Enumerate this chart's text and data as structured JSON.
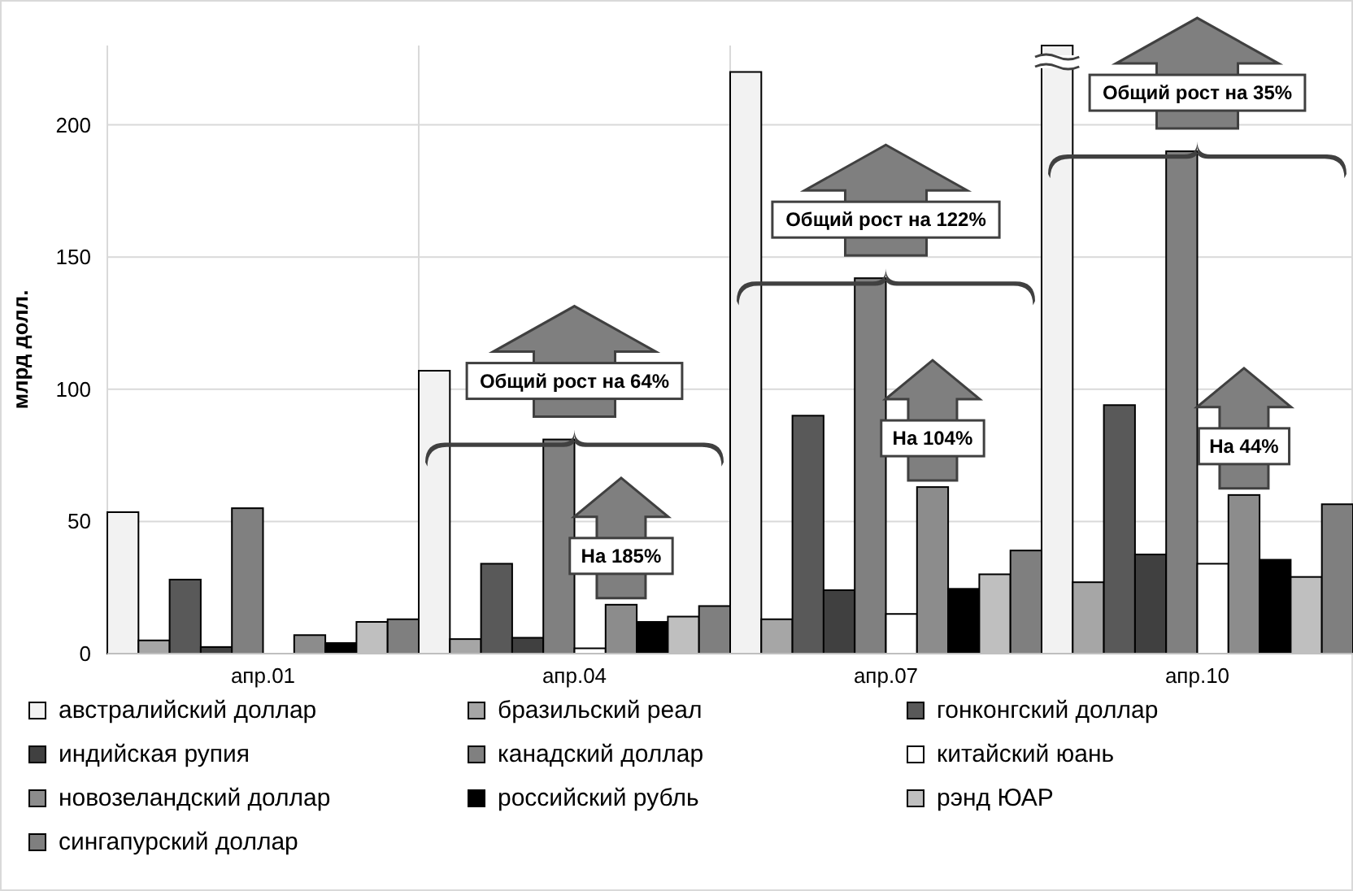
{
  "chart_data": {
    "type": "bar",
    "ylabel": "млрд долл.",
    "categories": [
      "апр.01",
      "апр.04",
      "апр.07",
      "апр.10"
    ],
    "series": [
      {
        "name": "австралийский доллар",
        "color": "#f2f2f2",
        "values": [
          53.5,
          107,
          220,
          230
        ]
      },
      {
        "name": "бразильский реал",
        "color": "#a6a6a6",
        "values": [
          5,
          5.5,
          13,
          27
        ]
      },
      {
        "name": "гонконгский доллар",
        "color": "#595959",
        "values": [
          28,
          34,
          90,
          94
        ]
      },
      {
        "name": "индийская рупия",
        "color": "#404040",
        "values": [
          2.5,
          6,
          24,
          37.5
        ]
      },
      {
        "name": "канадский доллар",
        "color": "#808080",
        "values": [
          55,
          81,
          142,
          190
        ]
      },
      {
        "name": "китайский юань",
        "color": "#ffffff",
        "values": [
          0,
          2,
          15,
          34
        ]
      },
      {
        "name": "новозеландский доллар",
        "color": "#8c8c8c",
        "values": [
          7,
          18.5,
          63,
          60
        ]
      },
      {
        "name": "российский рубль",
        "color": "#000000",
        "values": [
          4,
          12,
          24.5,
          35.5
        ]
      },
      {
        "name": "рэнд ЮАР",
        "color": "#bfbfbf",
        "values": [
          12,
          14,
          30,
          29
        ]
      },
      {
        "name": "сингапурский доллар",
        "color": "#7f7f7f",
        "values": [
          13,
          18,
          39,
          56.5
        ]
      }
    ],
    "ylim": [
      0,
      230
    ],
    "yticks": [
      0,
      50,
      100,
      150,
      200
    ],
    "grid": true,
    "legend": "bottom",
    "annotations": [
      {
        "text": "Общий рост на 64%",
        "x": "апр.04",
        "y": 81
      },
      {
        "text": "На 185%",
        "x": "апр.04",
        "y": 18.5
      },
      {
        "text": "Общий рост на 122%",
        "x": "апр.07",
        "y": 142
      },
      {
        "text": "На 104%",
        "x": "апр.07",
        "y": 63
      },
      {
        "text": "Общий рост на 35%",
        "x": "апр.10",
        "y": 190
      },
      {
        "text": "На 44%",
        "x": "апр.10",
        "y": 60
      }
    ]
  }
}
